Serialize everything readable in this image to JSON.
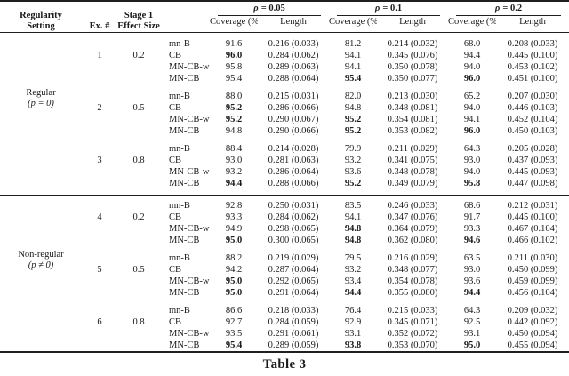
{
  "page": {
    "caption": "Table 3"
  },
  "table": {
    "headers": {
      "regularity_line1": "Regularity",
      "regularity_line2": "Setting",
      "ex": "Ex. #",
      "stage1_line1": "Stage 1",
      "stage1_line2": "Effect Size",
      "coverage": "Coverage (%)",
      "length": "Length",
      "groups": [
        {
          "symbol": "ρ",
          "value": "= 0.05"
        },
        {
          "symbol": "ρ",
          "value": "= 0.1"
        },
        {
          "symbol": "ρ",
          "value": "= 0.2"
        }
      ]
    },
    "sections": [
      {
        "label_line1": "Regular",
        "label_line2": "(p = 0)",
        "blocks": [
          {
            "ex": "1",
            "effect": "0.2",
            "rows": [
              {
                "method": "mn-B",
                "cells": [
                  {
                    "cov": "91.6",
                    "bold": false,
                    "len": "0.216 (0.033)"
                  },
                  {
                    "cov": "81.2",
                    "bold": false,
                    "len": "0.214 (0.032)"
                  },
                  {
                    "cov": "68.0",
                    "bold": false,
                    "len": "0.208 (0.033)"
                  }
                ]
              },
              {
                "method": "CB",
                "cells": [
                  {
                    "cov": "96.0",
                    "bold": true,
                    "len": "0.284 (0.062)"
                  },
                  {
                    "cov": "94.1",
                    "bold": false,
                    "len": "0.345 (0.076)"
                  },
                  {
                    "cov": "94.4",
                    "bold": false,
                    "len": "0.445 (0.100)"
                  }
                ]
              },
              {
                "method": "MN-CB-w",
                "cells": [
                  {
                    "cov": "95.8",
                    "bold": false,
                    "len": "0.289 (0.063)"
                  },
                  {
                    "cov": "94.1",
                    "bold": false,
                    "len": "0.350 (0.078)"
                  },
                  {
                    "cov": "94.0",
                    "bold": false,
                    "len": "0.453 (0.102)"
                  }
                ]
              },
              {
                "method": "MN-CB",
                "cells": [
                  {
                    "cov": "95.4",
                    "bold": false,
                    "len": "0.288 (0.064)"
                  },
                  {
                    "cov": "95.4",
                    "bold": true,
                    "len": "0.350 (0.077)"
                  },
                  {
                    "cov": "96.0",
                    "bold": true,
                    "len": "0.451 (0.100)"
                  }
                ]
              }
            ]
          },
          {
            "ex": "2",
            "effect": "0.5",
            "rows": [
              {
                "method": "mn-B",
                "cells": [
                  {
                    "cov": "88.0",
                    "bold": false,
                    "len": "0.215 (0.031)"
                  },
                  {
                    "cov": "82.0",
                    "bold": false,
                    "len": "0.213 (0.030)"
                  },
                  {
                    "cov": "65.2",
                    "bold": false,
                    "len": "0.207 (0.030)"
                  }
                ]
              },
              {
                "method": "CB",
                "cells": [
                  {
                    "cov": "95.2",
                    "bold": true,
                    "len": "0.286 (0.066)"
                  },
                  {
                    "cov": "94.8",
                    "bold": false,
                    "len": "0.348 (0.081)"
                  },
                  {
                    "cov": "94.0",
                    "bold": false,
                    "len": "0.446 (0.103)"
                  }
                ]
              },
              {
                "method": "MN-CB-w",
                "cells": [
                  {
                    "cov": "95.2",
                    "bold": true,
                    "len": "0.290 (0.067)"
                  },
                  {
                    "cov": "95.2",
                    "bold": true,
                    "len": "0.354 (0.081)"
                  },
                  {
                    "cov": "94.1",
                    "bold": false,
                    "len": "0.452 (0.104)"
                  }
                ]
              },
              {
                "method": "MN-CB",
                "cells": [
                  {
                    "cov": "94.8",
                    "bold": false,
                    "len": "0.290 (0.066)"
                  },
                  {
                    "cov": "95.2",
                    "bold": true,
                    "len": "0.353 (0.082)"
                  },
                  {
                    "cov": "96.0",
                    "bold": true,
                    "len": "0.450 (0.103)"
                  }
                ]
              }
            ]
          },
          {
            "ex": "3",
            "effect": "0.8",
            "rows": [
              {
                "method": "mn-B",
                "cells": [
                  {
                    "cov": "88.4",
                    "bold": false,
                    "len": "0.214 (0.028)"
                  },
                  {
                    "cov": "79.9",
                    "bold": false,
                    "len": "0.211 (0.029)"
                  },
                  {
                    "cov": "64.3",
                    "bold": false,
                    "len": "0.205 (0.028)"
                  }
                ]
              },
              {
                "method": "CB",
                "cells": [
                  {
                    "cov": "93.0",
                    "bold": false,
                    "len": "0.281 (0.063)"
                  },
                  {
                    "cov": "93.2",
                    "bold": false,
                    "len": "0.341 (0.075)"
                  },
                  {
                    "cov": "93.0",
                    "bold": false,
                    "len": "0.437 (0.093)"
                  }
                ]
              },
              {
                "method": "MN-CB-w",
                "cells": [
                  {
                    "cov": "93.2",
                    "bold": false,
                    "len": "0.286 (0.064)"
                  },
                  {
                    "cov": "93.6",
                    "bold": false,
                    "len": "0.348 (0.078)"
                  },
                  {
                    "cov": "94.0",
                    "bold": false,
                    "len": "0.445 (0.093)"
                  }
                ]
              },
              {
                "method": "MN-CB",
                "cells": [
                  {
                    "cov": "94.4",
                    "bold": true,
                    "len": "0.288 (0.066)"
                  },
                  {
                    "cov": "95.2",
                    "bold": true,
                    "len": "0.349 (0.079)"
                  },
                  {
                    "cov": "95.8",
                    "bold": true,
                    "len": "0.447 (0.098)"
                  }
                ]
              }
            ]
          }
        ]
      },
      {
        "label_line1": "Non-regular",
        "label_line2": "(p ≠ 0)",
        "blocks": [
          {
            "ex": "4",
            "effect": "0.2",
            "rows": [
              {
                "method": "mn-B",
                "cells": [
                  {
                    "cov": "92.8",
                    "bold": false,
                    "len": "0.250 (0.031)"
                  },
                  {
                    "cov": "83.5",
                    "bold": false,
                    "len": "0.246 (0.033)"
                  },
                  {
                    "cov": "68.6",
                    "bold": false,
                    "len": "0.212 (0.031)"
                  }
                ]
              },
              {
                "method": "CB",
                "cells": [
                  {
                    "cov": "93.3",
                    "bold": false,
                    "len": "0.284 (0.062)"
                  },
                  {
                    "cov": "94.1",
                    "bold": false,
                    "len": "0.347 (0.076)"
                  },
                  {
                    "cov": "91.7",
                    "bold": false,
                    "len": "0.445 (0.100)"
                  }
                ]
              },
              {
                "method": "MN-CB-w",
                "cells": [
                  {
                    "cov": "94.9",
                    "bold": false,
                    "len": "0.298 (0.065)"
                  },
                  {
                    "cov": "94.8",
                    "bold": true,
                    "len": "0.364 (0.079)"
                  },
                  {
                    "cov": "93.3",
                    "bold": false,
                    "len": "0.467 (0.104)"
                  }
                ]
              },
              {
                "method": "MN-CB",
                "cells": [
                  {
                    "cov": "95.0",
                    "bold": true,
                    "len": "0.300 (0.065)"
                  },
                  {
                    "cov": "94.8",
                    "bold": true,
                    "len": "0.362 (0.080)"
                  },
                  {
                    "cov": "94.6",
                    "bold": true,
                    "len": "0.466 (0.102)"
                  }
                ]
              }
            ]
          },
          {
            "ex": "5",
            "effect": "0.5",
            "rows": [
              {
                "method": "mn-B",
                "cells": [
                  {
                    "cov": "88.2",
                    "bold": false,
                    "len": "0.219 (0.029)"
                  },
                  {
                    "cov": "79.5",
                    "bold": false,
                    "len": "0.216 (0.029)"
                  },
                  {
                    "cov": "63.5",
                    "bold": false,
                    "len": "0.211 (0.030)"
                  }
                ]
              },
              {
                "method": "CB",
                "cells": [
                  {
                    "cov": "94.2",
                    "bold": false,
                    "len": "0.287 (0.064)"
                  },
                  {
                    "cov": "93.2",
                    "bold": false,
                    "len": "0.348 (0.077)"
                  },
                  {
                    "cov": "93.0",
                    "bold": false,
                    "len": "0.450 (0.099)"
                  }
                ]
              },
              {
                "method": "MN-CB-w",
                "cells": [
                  {
                    "cov": "95.0",
                    "bold": true,
                    "len": "0.292 (0.065)"
                  },
                  {
                    "cov": "93.4",
                    "bold": false,
                    "len": "0.354 (0.078)"
                  },
                  {
                    "cov": "93.6",
                    "bold": false,
                    "len": "0.459 (0.099)"
                  }
                ]
              },
              {
                "method": "MN-CB",
                "cells": [
                  {
                    "cov": "95.0",
                    "bold": true,
                    "len": "0.291 (0.064)"
                  },
                  {
                    "cov": "94.4",
                    "bold": true,
                    "len": "0.355 (0.080)"
                  },
                  {
                    "cov": "94.4",
                    "bold": true,
                    "len": "0.456 (0.104)"
                  }
                ]
              }
            ]
          },
          {
            "ex": "6",
            "effect": "0.8",
            "rows": [
              {
                "method": "mn-B",
                "cells": [
                  {
                    "cov": "86.6",
                    "bold": false,
                    "len": "0.218 (0.033)"
                  },
                  {
                    "cov": "76.4",
                    "bold": false,
                    "len": "0.215 (0.033)"
                  },
                  {
                    "cov": "64.3",
                    "bold": false,
                    "len": "0.209 (0.032)"
                  }
                ]
              },
              {
                "method": "CB",
                "cells": [
                  {
                    "cov": "92.7",
                    "bold": false,
                    "len": "0.284 (0.059)"
                  },
                  {
                    "cov": "92.9",
                    "bold": false,
                    "len": "0.345 (0.071)"
                  },
                  {
                    "cov": "92.5",
                    "bold": false,
                    "len": "0.442 (0.092)"
                  }
                ]
              },
              {
                "method": "MN-CB-w",
                "cells": [
                  {
                    "cov": "93.5",
                    "bold": false,
                    "len": "0.291 (0.061)"
                  },
                  {
                    "cov": "93.1",
                    "bold": false,
                    "len": "0.352 (0.072)"
                  },
                  {
                    "cov": "93.1",
                    "bold": false,
                    "len": "0.450 (0.094)"
                  }
                ]
              },
              {
                "method": "MN-CB",
                "cells": [
                  {
                    "cov": "95.4",
                    "bold": true,
                    "len": "0.289 (0.059)"
                  },
                  {
                    "cov": "93.8",
                    "bold": true,
                    "len": "0.353 (0.070)"
                  },
                  {
                    "cov": "95.0",
                    "bold": true,
                    "len": "0.455 (0.094)"
                  }
                ]
              }
            ]
          }
        ]
      }
    ]
  }
}
